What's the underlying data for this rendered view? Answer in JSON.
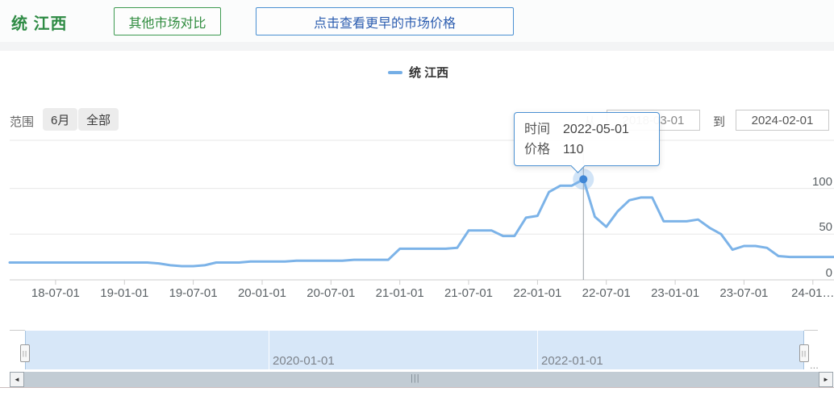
{
  "header": {
    "title": "统 江西",
    "compare_button": "其他市场对比",
    "earlier_button": "点击查看更早的市场价格"
  },
  "legend": {
    "label": "统 江西",
    "color": "#74aee6"
  },
  "range": {
    "label": "范围",
    "options": [
      "6月",
      "全部"
    ]
  },
  "date_range": {
    "from_label": "从",
    "from_value": "2018-03-01",
    "to_label": "到",
    "to_value": "2024-02-01"
  },
  "tooltip": {
    "time_label": "时间",
    "time_value": "2022-05-01",
    "price_label": "价格",
    "price_value": "110"
  },
  "chart_data": {
    "type": "line",
    "title": "统 江西",
    "xlabel": "",
    "ylabel": "",
    "grid": true,
    "legend_position": "top",
    "line_color": "#7cb3e8",
    "categories": [
      "2018-03",
      "2018-04",
      "2018-05",
      "2018-06",
      "2018-07",
      "2018-08",
      "2018-09",
      "2018-10",
      "2018-11",
      "2018-12",
      "2019-01",
      "2019-02",
      "2019-03",
      "2019-04",
      "2019-05",
      "2019-06",
      "2019-07",
      "2019-08",
      "2019-09",
      "2019-10",
      "2019-11",
      "2019-12",
      "2020-01",
      "2020-02",
      "2020-03",
      "2020-04",
      "2020-05",
      "2020-06",
      "2020-07",
      "2020-08",
      "2020-09",
      "2020-10",
      "2020-11",
      "2020-12",
      "2021-01",
      "2021-02",
      "2021-03",
      "2021-04",
      "2021-05",
      "2021-06",
      "2021-07",
      "2021-08",
      "2021-09",
      "2021-10",
      "2021-11",
      "2021-12",
      "2022-01",
      "2022-02",
      "2022-03",
      "2022-04",
      "2022-05",
      "2022-06",
      "2022-07",
      "2022-08",
      "2022-09",
      "2022-10",
      "2022-11",
      "2022-12",
      "2023-01",
      "2023-02",
      "2023-03",
      "2023-04",
      "2023-05",
      "2023-06",
      "2023-07",
      "2023-08",
      "2023-09",
      "2023-10",
      "2023-11",
      "2023-12",
      "2024-01",
      "2024-02"
    ],
    "series": [
      {
        "name": "统 江西",
        "color": "#7cb3e8",
        "values": [
          19,
          19,
          19,
          19,
          19,
          19,
          19,
          19,
          19,
          19,
          19,
          19,
          19,
          18,
          16,
          15,
          15,
          16,
          19,
          19,
          19,
          20,
          20,
          20,
          20,
          21,
          21,
          21,
          21,
          21,
          22,
          22,
          22,
          22,
          34,
          34,
          34,
          34,
          34,
          35,
          54,
          54,
          54,
          48,
          48,
          68,
          70,
          96,
          103,
          103,
          110,
          69,
          58,
          75,
          87,
          90,
          90,
          64,
          64,
          64,
          66,
          57,
          50,
          33,
          37,
          37,
          35,
          26,
          25,
          25,
          25,
          25
        ]
      }
    ],
    "x_tick_labels": [
      "18-07-01",
      "19-01-01",
      "19-07-01",
      "20-01-01",
      "20-07-01",
      "21-01-01",
      "21-07-01",
      "22-01-01",
      "22-07-01",
      "23-01-01",
      "23-07-01",
      "24-01…"
    ],
    "x_tick_indices": [
      4,
      10,
      16,
      22,
      28,
      34,
      40,
      46,
      52,
      58,
      64,
      70
    ],
    "y_ticks": [
      0,
      50,
      100
    ],
    "ylim": [
      0,
      152
    ],
    "highlight": {
      "index": 50,
      "category": "2022-05-01",
      "value": 110
    }
  },
  "slider": {
    "labels": [
      "2020-01-01",
      "2022-01-01"
    ],
    "overflow": "...",
    "handle_icon": "||"
  },
  "scrollbar": {
    "left_icon": "◄",
    "right_icon": "►",
    "grip_icon": "|||"
  }
}
